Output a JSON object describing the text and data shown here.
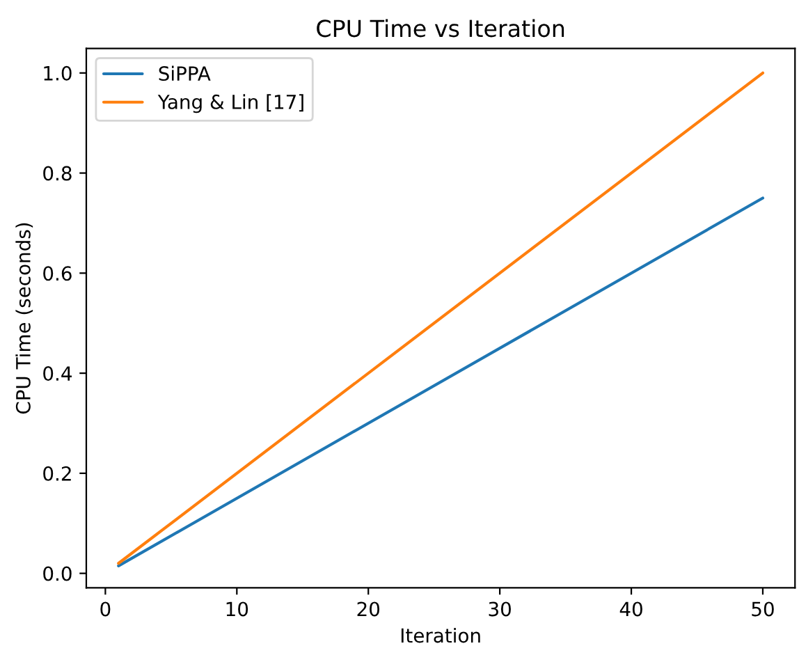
{
  "chart_data": {
    "type": "line",
    "title": "CPU Time vs Iteration",
    "xlabel": "Iteration",
    "ylabel": "CPU Time (seconds)",
    "series": [
      {
        "name": "SiPPA",
        "color": "#1f77b4",
        "values": [
          0.015,
          0.75
        ]
      },
      {
        "name": "Yang & Lin [17]",
        "color": "#ff7f0e",
        "values": [
          0.02,
          1.0
        ]
      }
    ],
    "x": [
      1,
      50
    ],
    "xlim": [
      -1.45,
      52.45
    ],
    "xticks": [
      0,
      10,
      20,
      30,
      40,
      50
    ],
    "ylim": [
      -0.029,
      1.049
    ],
    "yticks": [
      {
        "value": 0,
        "label": "0.0"
      },
      0.2,
      0.4,
      0.6,
      0.8,
      {
        "value": 1,
        "label": "1.0"
      }
    ],
    "legend": "top left",
    "grid": false,
    "line_style": "solid"
  }
}
